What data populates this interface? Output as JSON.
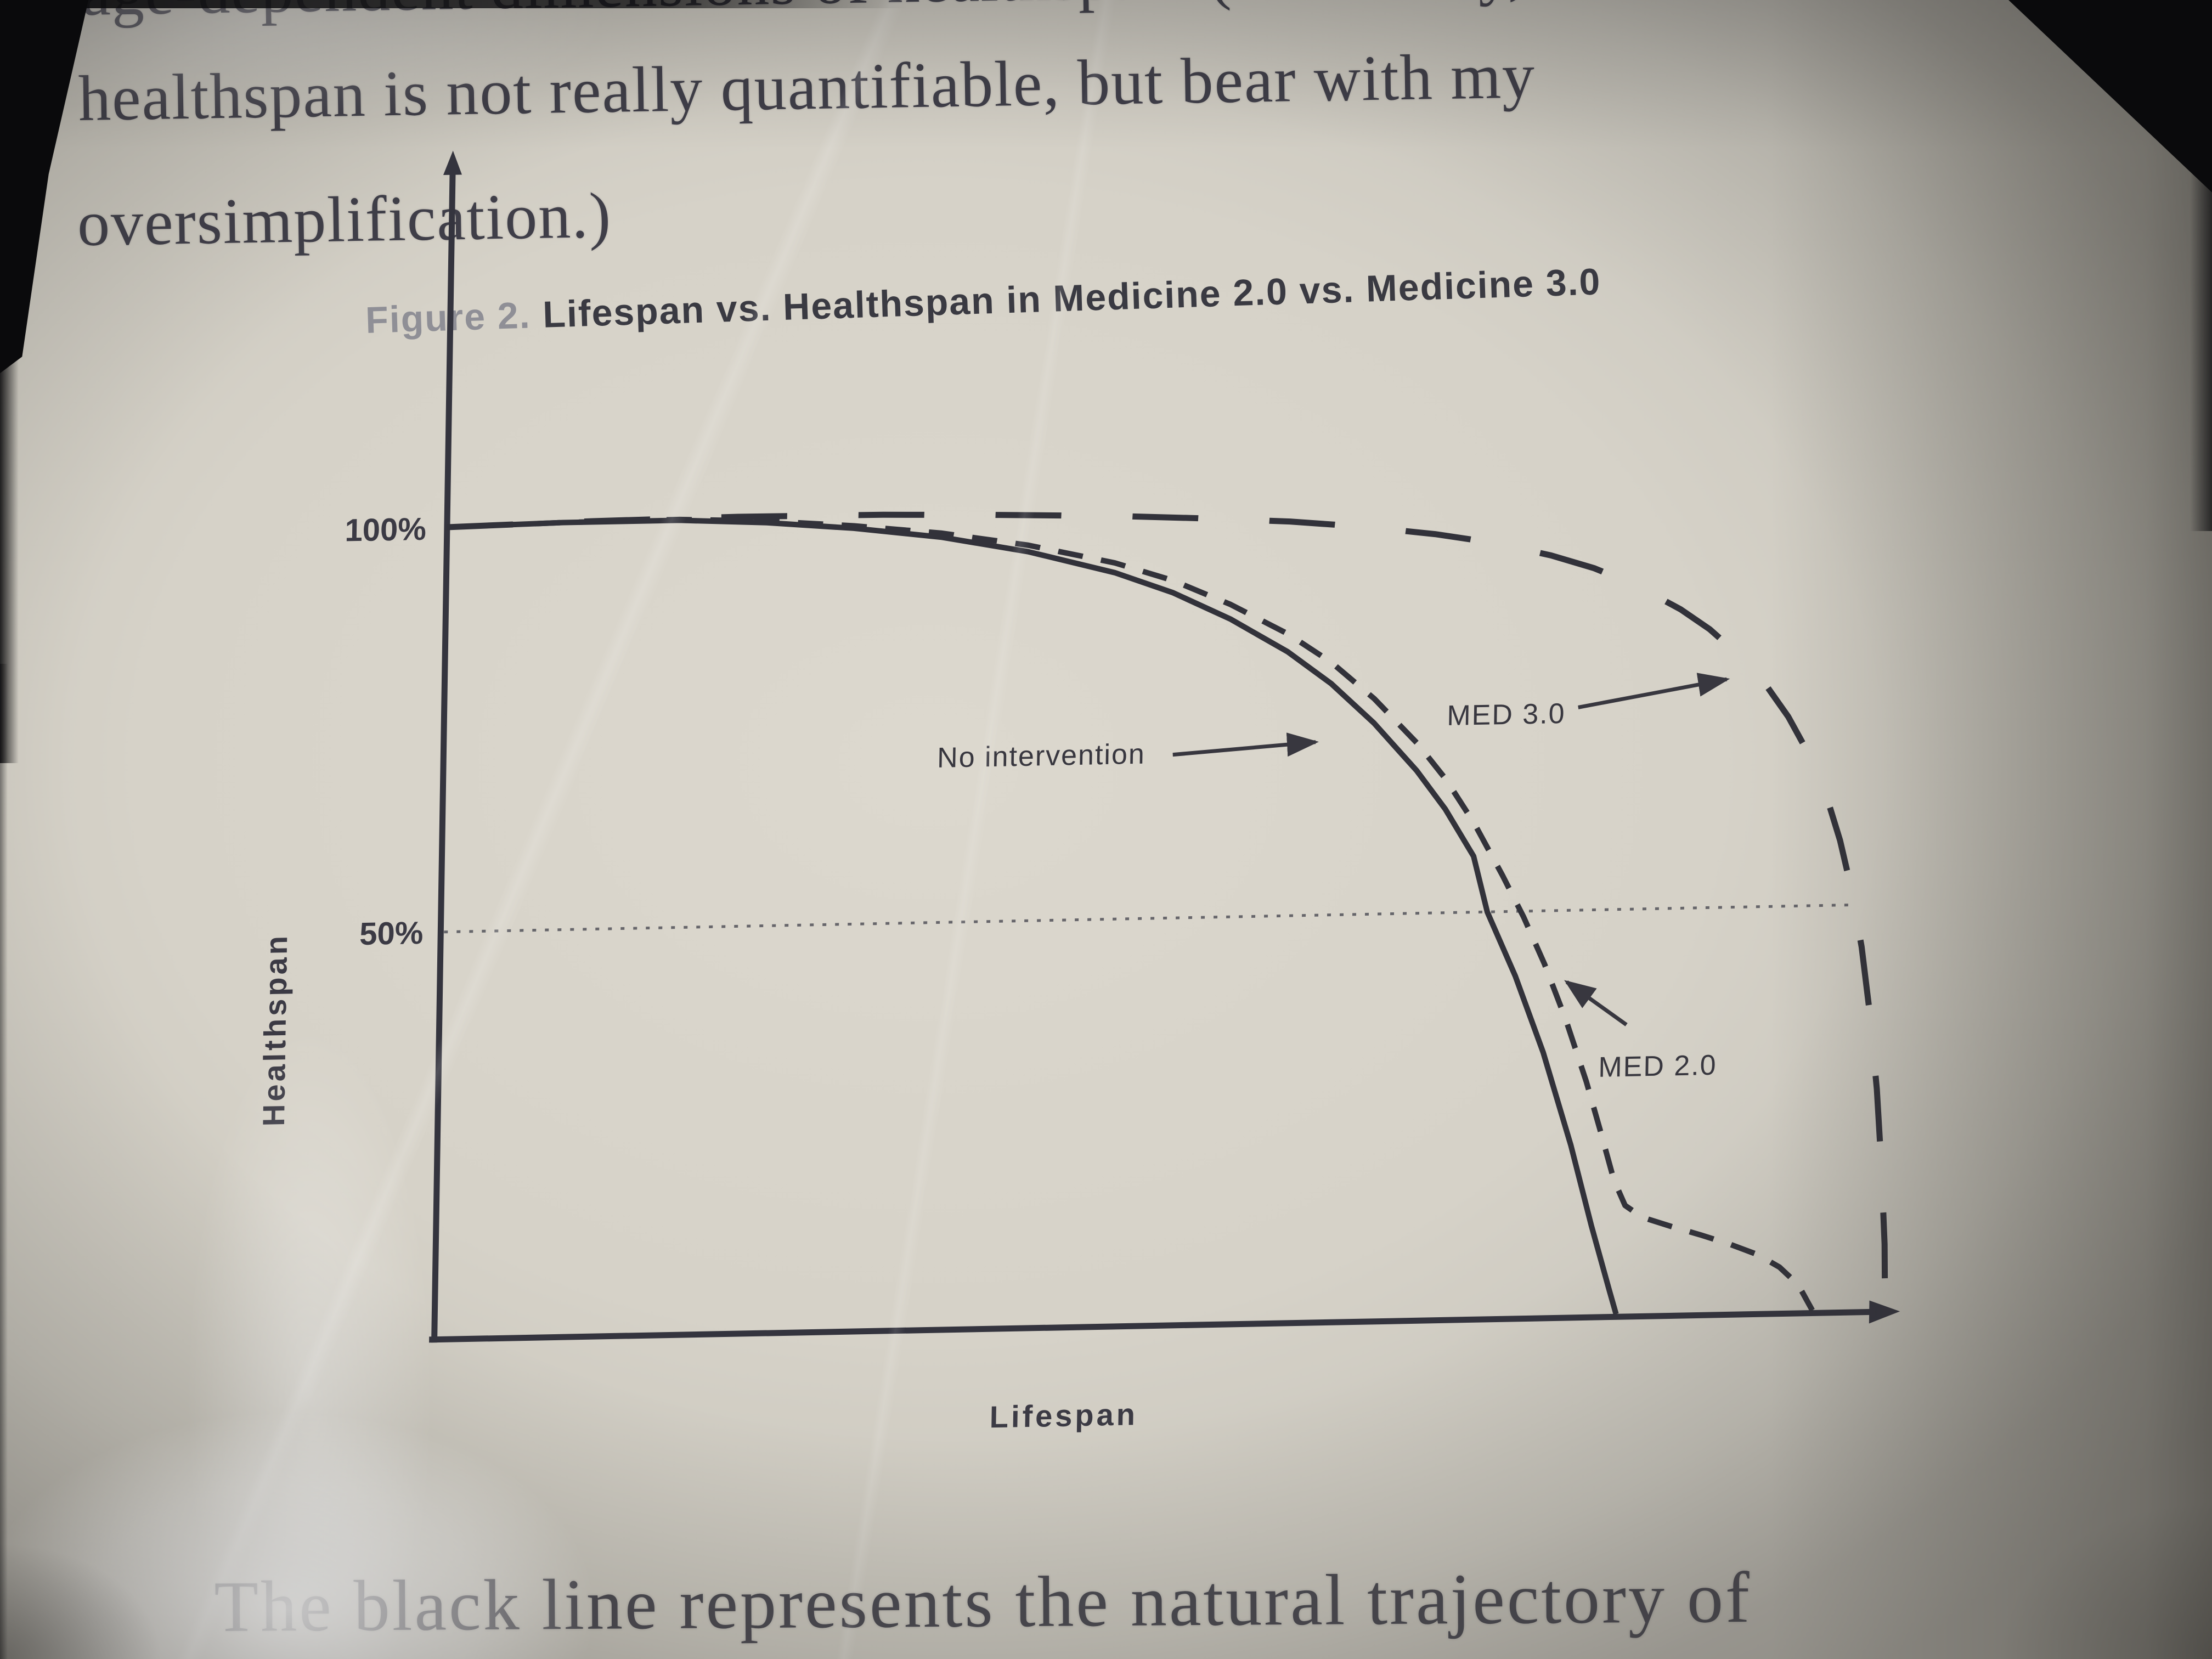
{
  "body_text": {
    "line1": "age-dependent dimensions of healthspan. (Obviously,",
    "line2": "healthspan is not really quantifiable, but bear with my",
    "line3": "oversimplification.)",
    "bottom_line": "The black line represents the natural trajectory of"
  },
  "figure": {
    "caption_prefix": "Figure 2.",
    "caption_title": "Lifespan vs. Healthspan in Medicine 2.0 vs. Medicine 3.0",
    "ylabel": "Healthspan",
    "xlabel": "Lifespan",
    "tick_100": "100%",
    "tick_50": "50%",
    "label_no_intervention": "No intervention",
    "label_med30": "MED 3.0",
    "label_med20": "MED 2.0"
  },
  "colors": {
    "ink": "#34343e",
    "body_ink": "#3f3e48",
    "caption_prefix_gray": "#8f8f96",
    "paper": "#d6d2c8"
  },
  "chart_data": {
    "type": "line",
    "title": "Lifespan vs. Healthspan in Medicine 2.0 vs. Medicine 3.0",
    "xlabel": "Lifespan",
    "ylabel": "Healthspan",
    "x_axis_ticks": "none (unlabeled arrow axis); x values below are percent of the maximum lifespan shown",
    "xlim": [
      0,
      100
    ],
    "ylim": [
      0,
      100
    ],
    "y_ticks": [
      {
        "value": 100,
        "label": "100%"
      },
      {
        "value": 50,
        "label": "50%"
      }
    ],
    "gridlines": [
      {
        "axis": "y",
        "value": 50,
        "style": "dotted"
      }
    ],
    "axis_arrows": true,
    "legend_position": "inline annotations with arrows",
    "series": [
      {
        "id": "no-intervention",
        "name": "No intervention",
        "style": "solid",
        "points": [
          [
            0,
            100
          ],
          [
            8,
            100.3
          ],
          [
            16,
            100.3
          ],
          [
            22,
            99.8
          ],
          [
            28,
            98.9
          ],
          [
            34,
            97.6
          ],
          [
            40,
            95.6
          ],
          [
            46,
            92.8
          ],
          [
            50,
            90.2
          ],
          [
            54,
            86.8
          ],
          [
            58,
            82.6
          ],
          [
            61,
            78.6
          ],
          [
            64,
            73.6
          ],
          [
            67,
            67.6
          ],
          [
            69,
            62.8
          ],
          [
            71,
            56.9
          ],
          [
            72,
            50
          ],
          [
            74,
            42
          ],
          [
            76,
            32.5
          ],
          [
            78,
            21
          ],
          [
            79.5,
            11
          ],
          [
            80.8,
            3
          ],
          [
            81.3,
            0
          ]
        ]
      },
      {
        "id": "med-2-0",
        "name": "MED 2.0",
        "style": "short-dash",
        "points": [
          [
            0,
            100
          ],
          [
            8,
            100.3
          ],
          [
            16,
            100.4
          ],
          [
            22,
            100
          ],
          [
            28,
            99.2
          ],
          [
            34,
            98.1
          ],
          [
            40,
            96.4
          ],
          [
            46,
            94.0
          ],
          [
            50,
            91.7
          ],
          [
            54,
            88.6
          ],
          [
            58,
            84.8
          ],
          [
            61,
            81.2
          ],
          [
            64,
            76.6
          ],
          [
            67,
            71.0
          ],
          [
            69,
            66.5
          ],
          [
            71,
            61.0
          ],
          [
            73,
            54.5
          ],
          [
            74.5,
            49.3
          ],
          [
            76,
            43.4
          ],
          [
            77.5,
            36.6
          ],
          [
            79,
            28.8
          ],
          [
            80,
            22.8
          ],
          [
            81,
            16.6
          ],
          [
            81.8,
            13.4
          ],
          [
            83,
            11.9
          ],
          [
            85,
            10.7
          ],
          [
            87,
            9.6
          ],
          [
            89,
            8.4
          ],
          [
            91,
            7.0
          ],
          [
            92.5,
            5.4
          ],
          [
            93.8,
            3.2
          ],
          [
            94.8,
            0
          ]
        ]
      },
      {
        "id": "med-3-0",
        "name": "MED 3.0",
        "style": "long-dash",
        "points": [
          [
            0,
            100
          ],
          [
            10,
            100.4
          ],
          [
            20,
            100.6
          ],
          [
            30,
            100.5
          ],
          [
            38,
            100.2
          ],
          [
            46,
            99.8
          ],
          [
            52,
            99.3
          ],
          [
            58,
            98.7
          ],
          [
            63,
            97.9
          ],
          [
            68,
            96.8
          ],
          [
            72,
            95.6
          ],
          [
            76,
            93.9
          ],
          [
            79,
            92.2
          ],
          [
            82,
            89.9
          ],
          [
            85,
            86.9
          ],
          [
            87,
            84.4
          ],
          [
            89,
            81.2
          ],
          [
            91,
            77.2
          ],
          [
            92.5,
            73.4
          ],
          [
            94,
            68.6
          ],
          [
            95.2,
            63.6
          ],
          [
            96.2,
            58.0
          ],
          [
            97,
            52.2
          ],
          [
            97.8,
            44.8
          ],
          [
            98.4,
            37.0
          ],
          [
            99,
            27.2
          ],
          [
            99.4,
            17.6
          ],
          [
            99.7,
            8.0
          ],
          [
            99.8,
            0
          ]
        ]
      }
    ]
  }
}
